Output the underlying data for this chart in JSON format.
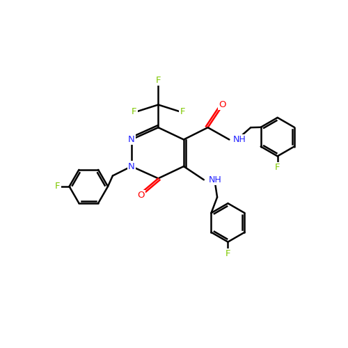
{
  "background_color": "#ffffff",
  "bond_color": "#000000",
  "bond_width": 1.8,
  "atom_colors": {
    "N": "#2020ff",
    "O": "#ff0000",
    "F": "#7ec800",
    "C": "#000000"
  },
  "figsize": [
    5.0,
    5.0
  ],
  "dpi": 100,
  "xlim": [
    0,
    10
  ],
  "ylim": [
    0,
    10
  ]
}
